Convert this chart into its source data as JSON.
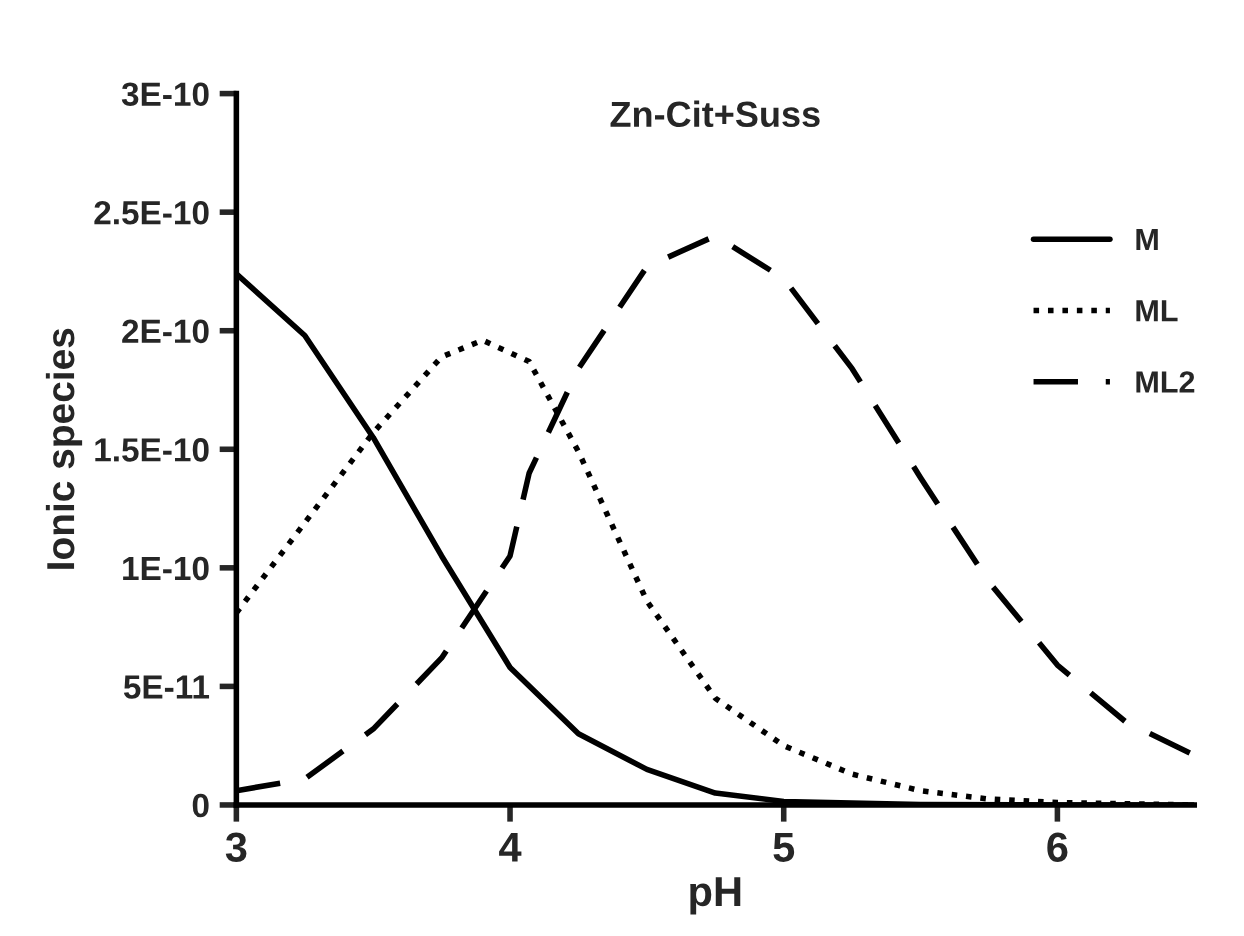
{
  "chart_data": {
    "type": "line",
    "title": "Zn-Cit+Suss",
    "xlabel": "pH",
    "ylabel": "Ionic species",
    "xlim": [
      3,
      6.5
    ],
    "xticks": [
      3,
      4,
      5,
      6
    ],
    "ylim": [
      0,
      3e-10
    ],
    "yticks": [
      {
        "value": 0,
        "label": "0"
      },
      {
        "value": 5e-11,
        "label": "5E-11"
      },
      {
        "value": 1e-10,
        "label": "1E-10"
      },
      {
        "value": 1.5e-10,
        "label": "1.5E-10"
      },
      {
        "value": 2e-10,
        "label": "2E-10"
      },
      {
        "value": 2.5e-10,
        "label": "2.5E-10"
      },
      {
        "value": 3e-10,
        "label": "3E-10"
      }
    ],
    "grid": false,
    "legend": "top right",
    "marker": "none",
    "series": [
      {
        "name": "M",
        "color": "#000000",
        "line_style": "solid",
        "x": [
          3,
          3.25,
          3.5,
          3.75,
          4,
          4.25,
          4.5,
          4.75,
          5,
          5.5,
          6,
          6.5
        ],
        "values": [
          2.24e-10,
          1.98e-10,
          1.55e-10,
          1.05e-10,
          5.8e-11,
          3e-11,
          1.5e-11,
          5e-12,
          1.5e-12,
          2e-13,
          0,
          0
        ]
      },
      {
        "name": "ML",
        "color": "#000000",
        "line_style": "dotted",
        "x": [
          3,
          3.25,
          3.5,
          3.75,
          3.9,
          4.07,
          4.25,
          4.5,
          4.75,
          5,
          5.25,
          5.5,
          5.75,
          6,
          6.5
        ],
        "values": [
          8.1e-11,
          1.19e-10,
          1.57e-10,
          1.89e-10,
          1.96e-10,
          1.87e-10,
          1.49e-10,
          8.6e-11,
          4.5e-11,
          2.5e-11,
          1.3e-11,
          6e-12,
          2.5e-12,
          1e-12,
          0
        ]
      },
      {
        "name": "ML2",
        "color": "#000000",
        "line_style": "dashed",
        "x": [
          3,
          3.25,
          3.5,
          3.75,
          4,
          4.07,
          4.25,
          4.5,
          4.75,
          5,
          5.25,
          5.5,
          5.75,
          6,
          6.25,
          6.5
        ],
        "values": [
          6e-12,
          1.1e-11,
          3.2e-11,
          6.2e-11,
          1.05e-10,
          1.4e-10,
          1.84e-10,
          2.27e-10,
          2.4e-10,
          2.22e-10,
          1.84e-10,
          1.38e-10,
          9.4e-11,
          5.9e-11,
          3.5e-11,
          2.1e-11
        ]
      }
    ]
  }
}
